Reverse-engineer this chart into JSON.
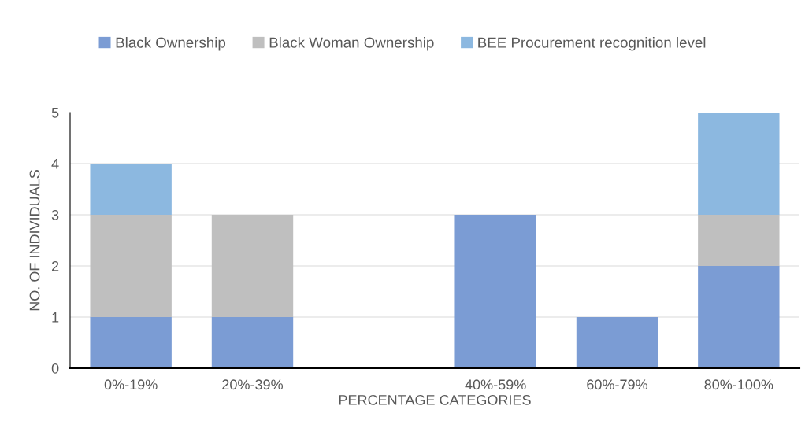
{
  "chart_data": {
    "type": "bar",
    "stacked": true,
    "categories": [
      "0%-19%",
      "20%-39%",
      null,
      "40%-59%",
      "60%-79%",
      "80%-100%"
    ],
    "series": [
      {
        "name": "Black Ownership",
        "color": "#7b9cd4",
        "values": [
          1,
          1,
          null,
          3,
          1,
          2
        ]
      },
      {
        "name": "Black Woman Ownership",
        "color": "#bfbfbf",
        "values": [
          2,
          2,
          null,
          null,
          null,
          1
        ]
      },
      {
        "name": "BEE Procurement recognition level",
        "color": "#8cb8e0",
        "values": [
          1,
          null,
          null,
          null,
          null,
          2
        ]
      }
    ],
    "xlabel": "PERCENTAGE CATEGORIES",
    "ylabel": "NO. OF INDIVIDUALS",
    "ylim": [
      0,
      5
    ],
    "yticks": [
      0,
      1,
      2,
      3,
      4,
      5
    ],
    "grid": "y",
    "legend": "top"
  }
}
